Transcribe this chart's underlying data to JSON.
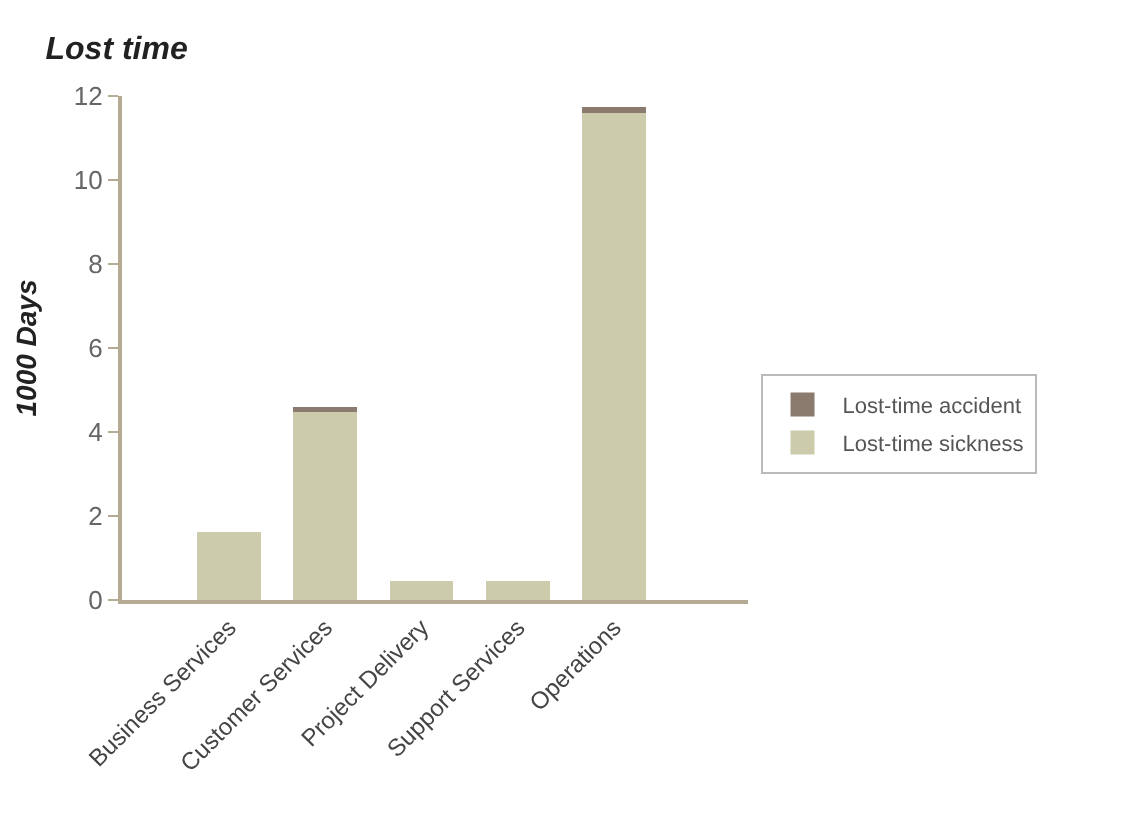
{
  "chart_data": {
    "type": "bar",
    "title": "Lost time",
    "ylabel": "1000 Days",
    "categories": [
      "Business Services",
      "Customer Services",
      "Project Delivery",
      "Support Services",
      "Operations"
    ],
    "stacked": true,
    "series": [
      {
        "name": "Lost-time sickness",
        "color": "#cccbab",
        "values": [
          1.62,
          4.52,
          0.46,
          0.46,
          11.59
        ]
      },
      {
        "name": "Lost-time accident",
        "color": "#8b7a6e",
        "values": [
          0,
          0.07,
          0,
          0,
          0.14
        ]
      }
    ],
    "ylim": [
      0,
      12
    ],
    "yticks": [
      0,
      2,
      4,
      6,
      8,
      10,
      12
    ],
    "legend": "right"
  }
}
